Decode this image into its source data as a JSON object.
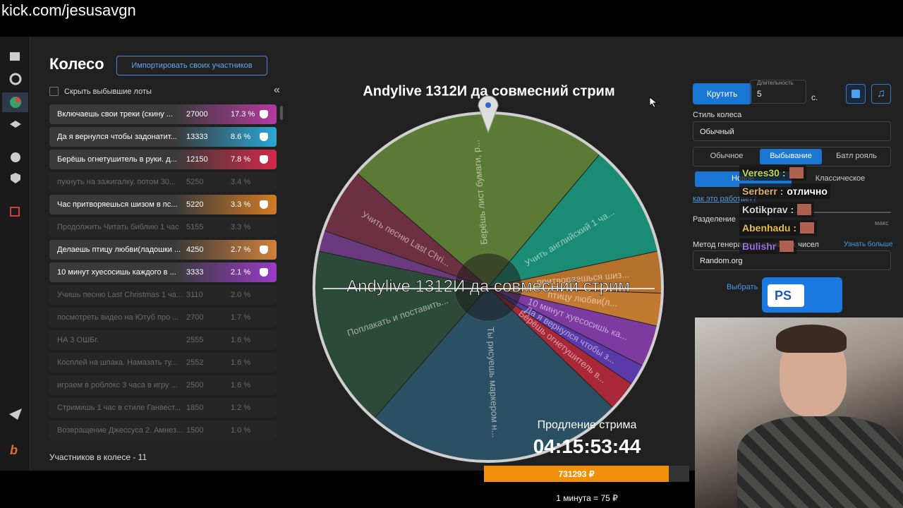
{
  "url": "kick.com/jesusavgn",
  "header": {
    "title": "Колесо",
    "import_button": "Импортировать своих участников"
  },
  "hide_checkbox": "Скрыть выбывшие лоты",
  "lots": [
    {
      "name": "Включаешь свои треки (скину ...",
      "amount": 27000,
      "percent": "17.3 %",
      "color": "#b53aa0"
    },
    {
      "name": "Да я вернулся чтобы задонатит...",
      "amount": 13333,
      "percent": "8.6 %",
      "color": "#2aa6d6"
    },
    {
      "name": "Берёшь огнетушитель в руки. д...",
      "amount": 12150,
      "percent": "7.8 %",
      "color": "#d0284a"
    },
    {
      "name": "пукнуть на зажигалку. потом 30...",
      "amount": 5250,
      "percent": "3.4 %",
      "eliminated": true
    },
    {
      "name": "Час притворяешься шизом в пс...",
      "amount": 5220,
      "percent": "3.3 %",
      "color": "#d27a22"
    },
    {
      "name": "Продолжить Читать библию 1 час",
      "amount": 5155,
      "percent": "3.3 %",
      "eliminated": true
    },
    {
      "name": "Делаешь птицу любви(ладошки ...",
      "amount": 4250,
      "percent": "2.7 %",
      "color": "#d0803a"
    },
    {
      "name": "10 минут хуесосишь каждого в ...",
      "amount": 3333,
      "percent": "2.1 %",
      "color": "#9a3ac8"
    },
    {
      "name": "Учишь песню Last Christmas 1 ча...",
      "amount": 3110,
      "percent": "2.0 %",
      "eliminated": true
    },
    {
      "name": "посмотреть видео на Ютуб про ...",
      "amount": 2700,
      "percent": "1.7 %",
      "eliminated": true
    },
    {
      "name": "НА 3 ОШБг.",
      "amount": 2555,
      "percent": "1.6 %",
      "eliminated": true
    },
    {
      "name": "Косплей на шпака. Намазать ту...",
      "amount": 2552,
      "percent": "1.6 %",
      "eliminated": true
    },
    {
      "name": "играем в роблокс 3 часа в игру ...",
      "amount": 2500,
      "percent": "1.6 %",
      "eliminated": true
    },
    {
      "name": "Стримишь 1 час в стиле Ганвест...",
      "amount": 1850,
      "percent": "1.2 %",
      "eliminated": true
    },
    {
      "name": "Возвращение Джессуса 2. Амнез...",
      "amount": 1500,
      "percent": "1.0 %",
      "eliminated": true
    }
  ],
  "participants_count_text": "Участников в колесе - 11",
  "wheel": {
    "title": "Andylive 1312И да совмесний стрим",
    "segments": [
      {
        "label": "Берёшь лист бумаги, р...",
        "color": "#5b7a35"
      },
      {
        "label": "Учить английский 1 ча...",
        "color": "#1a8c74"
      },
      {
        "label": "притворяешься шиз...",
        "color": "#b5712c"
      },
      {
        "label": "птицу любви(л...",
        "color": "#c27a32"
      },
      {
        "label": "10 минут хуесосишь ка...",
        "color": "#7d3aa0"
      },
      {
        "label": "Да я вернулся чтобы з...",
        "color": "#5a3aa8"
      },
      {
        "label": "Берёшь огнетушитель в...",
        "color": "#a82838"
      },
      {
        "label": "Ты рисуешь маркером н...",
        "color": "#2b5063"
      },
      {
        "label": "Поплакать и поставить...",
        "color": "#2c4a38"
      },
      {
        "label": "Учить песню Last Chri...",
        "color": "#6d2f42"
      }
    ]
  },
  "controls": {
    "spin_button": "Крутить",
    "duration_label": "Длительность",
    "duration_value": 5,
    "duration_unit": "с.",
    "style_label": "Стиль колеса",
    "style_value": "Обычный",
    "mode_tabs": [
      "Обычное",
      "Выбывание",
      "Батл рояль"
    ],
    "submode_tabs": [
      "Новое",
      "Классическое"
    ],
    "how_link": "как это работает?",
    "split_label": "Разделение",
    "split_max": "макс",
    "random_label": "Метод генерации случайных чисел",
    "learn_more": "Узнать больше",
    "random_value": "Random.org",
    "choose": "Выбрать"
  },
  "chat": [
    {
      "user": "Veres30 :",
      "color": "#c8d84a"
    },
    {
      "user": "Serberr :",
      "message": "отлично",
      "color": "#e0b070"
    },
    {
      "user": "Kotikprav :",
      "color": "#d8d8d8"
    },
    {
      "user": "Abenhadu :",
      "color": "#e8c040"
    },
    {
      "user": "Bulishr",
      "color": "#a070e0"
    }
  ],
  "overlay_badge": "PS",
  "stream": {
    "label": "Продление стрима",
    "timer": "04:15:53:44",
    "amount": "731293 ₽",
    "rate": "1 минута = 75 ₽"
  }
}
